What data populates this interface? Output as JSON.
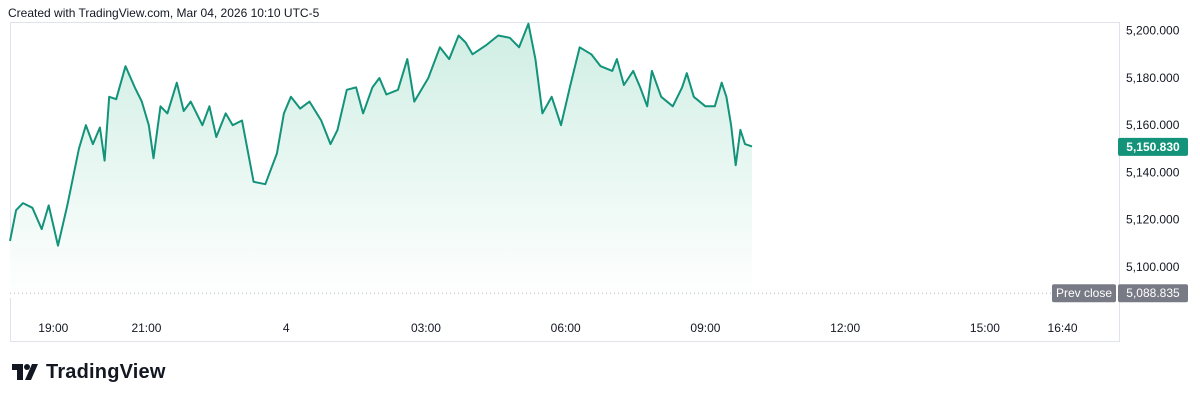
{
  "header": {
    "caption": "Created with TradingView.com, Mar 04, 2026 10:10 UTC-5"
  },
  "footer": {
    "brand_name": "TradingView",
    "brand_icon": "tradingview-logo-icon"
  },
  "colors": {
    "line": "#12937a",
    "area_top": "#cfeee3",
    "area_bottom": "#ffffff",
    "price_label_bg": "#12937a",
    "prev_close_bg": "#787b86"
  },
  "chart_data": {
    "type": "area",
    "y_ticks": [
      "5,200.000",
      "5,180.000",
      "5,160.000",
      "5,140.000",
      "5,120.000",
      "5,100.000"
    ],
    "y_tick_values": [
      5200,
      5180,
      5160,
      5140,
      5120,
      5100
    ],
    "ylim": [
      5086.8,
      5203.7
    ],
    "x_ticks": [
      "19:00",
      "21:00",
      "4",
      "03:00",
      "06:00",
      "09:00",
      "12:00",
      "15:00",
      "16:40"
    ],
    "x_tick_hours": [
      19,
      21,
      24,
      27,
      30,
      33,
      36,
      39,
      40.667
    ],
    "xlim_hours": [
      18.07,
      41.9
    ],
    "last_price": {
      "label": "5,150.830",
      "value": 5150.83
    },
    "prev_close": {
      "title": "Prev close",
      "label": "5,088.835",
      "value": 5088.835
    },
    "grid": false,
    "series": [
      {
        "x": [
          18.07,
          18.2,
          18.35,
          18.55,
          18.75,
          18.9,
          19.1,
          19.3,
          19.55,
          19.7,
          19.85,
          20.0,
          20.1,
          20.2,
          20.35,
          20.55,
          20.75,
          20.9,
          21.05,
          21.15,
          21.3,
          21.45,
          21.65,
          21.8,
          21.95,
          22.2,
          22.35,
          22.5,
          22.7,
          22.85,
          23.05,
          23.3,
          23.55,
          23.8,
          23.95,
          24.1,
          24.3,
          24.5,
          24.75,
          24.95,
          25.1,
          25.3,
          25.5,
          25.65,
          25.85,
          26.0,
          26.15,
          26.4,
          26.6,
          26.75,
          27.05,
          27.3,
          27.5,
          27.7,
          27.85,
          28.0,
          28.3,
          28.55,
          28.8,
          29.0,
          29.2,
          29.35,
          29.5,
          29.7,
          29.9,
          30.1,
          30.3,
          30.55,
          30.75,
          31.0,
          31.1,
          31.25,
          31.45,
          31.6,
          31.75,
          31.85,
          32.05,
          32.3,
          32.5,
          32.6,
          32.75,
          33.0,
          33.2,
          33.35,
          33.45,
          33.55,
          33.65,
          33.75,
          33.85,
          34.0
        ],
        "values": [
          5111,
          5124,
          5127,
          5125,
          5116,
          5126,
          5109,
          5126,
          5150,
          5160,
          5152,
          5159,
          5145,
          5172,
          5171,
          5185,
          5176,
          5170,
          5160,
          5146,
          5168,
          5165,
          5178,
          5166,
          5170,
          5160,
          5168,
          5155,
          5165,
          5160,
          5162,
          5136,
          5135,
          5148,
          5165,
          5172,
          5167,
          5170,
          5162,
          5152,
          5158,
          5175,
          5176,
          5165,
          5176,
          5180,
          5173,
          5175,
          5188,
          5170,
          5180,
          5193,
          5188,
          5198,
          5195,
          5190,
          5194,
          5198,
          5197,
          5193,
          5203,
          5188,
          5165,
          5172,
          5160,
          5177,
          5193,
          5190,
          5185,
          5183,
          5188,
          5177,
          5183,
          5176,
          5168,
          5183,
          5172,
          5168,
          5176,
          5182,
          5172,
          5168,
          5168,
          5178,
          5172,
          5160,
          5143,
          5158,
          5152,
          5151
        ]
      }
    ]
  }
}
